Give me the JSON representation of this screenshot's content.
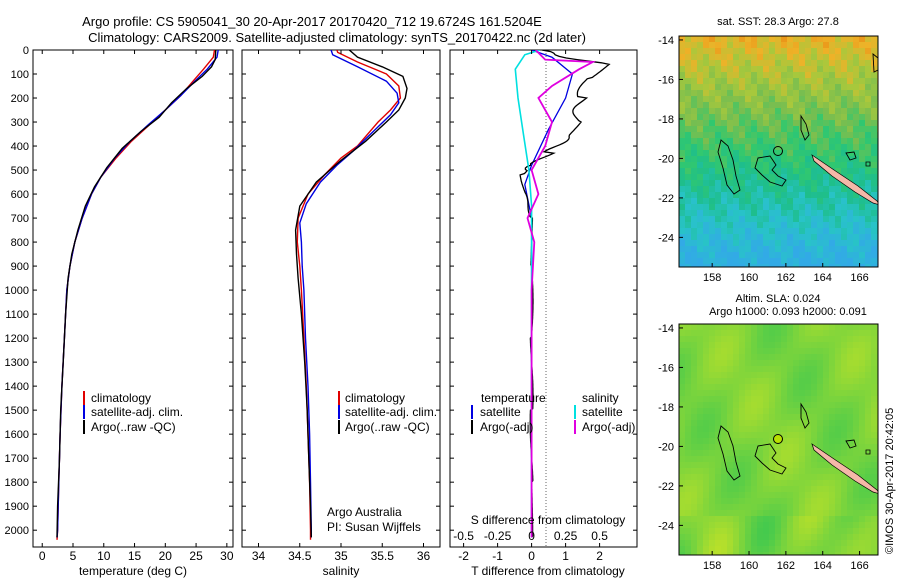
{
  "title_line1": "Argo profile: CS 5905041_30 20-Apr-2017 20170420_712 19.6724S 161.5204E",
  "title_line2": "Climatology: CARS2009. Satellite-adjusted climatology: synTS_20170422.nc (2d later)",
  "footer": "©IMOS 30-Apr-2017 20:42:05",
  "colors": {
    "climatology": "#e00000",
    "satellite": "#0000e0",
    "argo": "#000000",
    "s_satellite": "#00e0e0",
    "s_argo": "#e000e0",
    "land": "#f4b8a8"
  },
  "chart_data": [
    {
      "type": "line",
      "id": "temperature",
      "xlabel": "temperature (deg C)",
      "ylabel": "",
      "xlim": [
        -1.5,
        31
      ],
      "ylim": [
        2070,
        0
      ],
      "xticks": [
        "0",
        "5",
        "10",
        "15",
        "20",
        "25",
        "30"
      ],
      "xtick_values": [
        0,
        5,
        10,
        15,
        20,
        25,
        30
      ],
      "yticks": [
        "0",
        "100",
        "200",
        "300",
        "400",
        "500",
        "600",
        "700",
        "800",
        "900",
        "1000",
        "1100",
        "1200",
        "1300",
        "1400",
        "1500",
        "1600",
        "1700",
        "1800",
        "1900",
        "2000"
      ],
      "ytick_values": [
        0,
        100,
        200,
        300,
        400,
        500,
        600,
        700,
        800,
        900,
        1000,
        1100,
        1200,
        1300,
        1400,
        1500,
        1600,
        1700,
        1800,
        1900,
        2000
      ],
      "legend": [
        "climatology",
        "satellite-adj. clim.",
        "Argo(..raw -QC)"
      ],
      "series": [
        {
          "name": "climatology",
          "points": [
            [
              28,
              0
            ],
            [
              27.8,
              30
            ],
            [
              26.2,
              80
            ],
            [
              24.5,
              130
            ],
            [
              22.5,
              190
            ],
            [
              20,
              250
            ],
            [
              17.5,
              310
            ],
            [
              14.5,
              380
            ],
            [
              12,
              450
            ],
            [
              9.5,
              530
            ],
            [
              8,
              600
            ],
            [
              6.5,
              700
            ],
            [
              5.3,
              800
            ],
            [
              4.5,
              900
            ],
            [
              4,
              1000
            ],
            [
              3.6,
              1200
            ],
            [
              3.2,
              1400
            ],
            [
              2.9,
              1600
            ],
            [
              2.7,
              1800
            ],
            [
              2.5,
              2000
            ],
            [
              2.4,
              2040
            ]
          ]
        },
        {
          "name": "satellite-adj. clim.",
          "points": [
            [
              28.6,
              0
            ],
            [
              28.4,
              30
            ],
            [
              26.8,
              80
            ],
            [
              24.8,
              130
            ],
            [
              22.5,
              190
            ],
            [
              20,
              250
            ],
            [
              17.3,
              310
            ],
            [
              14.3,
              380
            ],
            [
              11.8,
              450
            ],
            [
              9.5,
              530
            ],
            [
              8,
              600
            ],
            [
              6.5,
              700
            ],
            [
              5.3,
              800
            ],
            [
              4.5,
              900
            ],
            [
              4,
              1000
            ],
            [
              3.6,
              1200
            ],
            [
              3.2,
              1400
            ],
            [
              2.9,
              1600
            ],
            [
              2.7,
              1800
            ],
            [
              2.5,
              2000
            ],
            [
              2.4,
              2030
            ]
          ]
        },
        {
          "name": "Argo(..raw -QC)",
          "points": [
            [
              28.2,
              0
            ],
            [
              28.1,
              40
            ],
            [
              27.5,
              70
            ],
            [
              26,
              110
            ],
            [
              23.5,
              160
            ],
            [
              21,
              220
            ],
            [
              19,
              280
            ],
            [
              16,
              340
            ],
            [
              13,
              410
            ],
            [
              10.5,
              490
            ],
            [
              8.5,
              570
            ],
            [
              7,
              650
            ],
            [
              5.8,
              750
            ],
            [
              4.8,
              850
            ],
            [
              4.2,
              950
            ],
            [
              3.8,
              1100
            ],
            [
              3.4,
              1300
            ],
            [
              3,
              1500
            ],
            [
              2.8,
              1700
            ],
            [
              2.5,
              1900
            ],
            [
              2.4,
              2030
            ]
          ]
        }
      ]
    },
    {
      "type": "line",
      "id": "salinity",
      "xlabel": "salinity",
      "ylabel": "",
      "xlim": [
        33.8,
        36.2
      ],
      "ylim": [
        2070,
        0
      ],
      "xticks": [
        "34",
        "34.5",
        "35",
        "35.5",
        "36"
      ],
      "xtick_values": [
        34,
        34.5,
        35,
        35.5,
        36
      ],
      "legend": [
        "climatology",
        "satellite-adj. clim.",
        "Argo(..raw -QC)"
      ],
      "annotation": [
        "Argo Australia",
        "PI: Susan Wijffels"
      ],
      "series": [
        {
          "name": "climatology",
          "points": [
            [
              34.95,
              0
            ],
            [
              34.96,
              10
            ],
            [
              35.2,
              50
            ],
            [
              35.55,
              100
            ],
            [
              35.7,
              150
            ],
            [
              35.72,
              200
            ],
            [
              35.6,
              250
            ],
            [
              35.45,
              300
            ],
            [
              35.2,
              400
            ],
            [
              35,
              450
            ],
            [
              34.8,
              520
            ],
            [
              34.6,
              600
            ],
            [
              34.48,
              700
            ],
            [
              34.47,
              800
            ],
            [
              34.5,
              900
            ],
            [
              34.52,
              1000
            ],
            [
              34.55,
              1200
            ],
            [
              34.58,
              1400
            ],
            [
              34.6,
              1600
            ],
            [
              34.62,
              1800
            ],
            [
              34.63,
              2000
            ],
            [
              34.63,
              2040
            ]
          ]
        },
        {
          "name": "satellite-adj. clim.",
          "points": [
            [
              34.88,
              0
            ],
            [
              34.9,
              20
            ],
            [
              35.2,
              70
            ],
            [
              35.55,
              130
            ],
            [
              35.68,
              180
            ],
            [
              35.7,
              220
            ],
            [
              35.6,
              270
            ],
            [
              35.45,
              320
            ],
            [
              35.15,
              420
            ],
            [
              34.95,
              480
            ],
            [
              34.75,
              550
            ],
            [
              34.58,
              640
            ],
            [
              34.5,
              720
            ],
            [
              34.52,
              800
            ],
            [
              34.53,
              900
            ],
            [
              34.55,
              1000
            ],
            [
              34.57,
              1200
            ],
            [
              34.6,
              1400
            ],
            [
              34.62,
              1600
            ],
            [
              34.63,
              1800
            ],
            [
              34.64,
              2000
            ],
            [
              34.64,
              2030
            ]
          ]
        },
        {
          "name": "Argo(..raw -QC)",
          "points": [
            [
              35.1,
              0
            ],
            [
              35.2,
              30
            ],
            [
              35.5,
              70
            ],
            [
              35.75,
              110
            ],
            [
              35.8,
              160
            ],
            [
              35.78,
              200
            ],
            [
              35.7,
              250
            ],
            [
              35.55,
              300
            ],
            [
              35.3,
              380
            ],
            [
              35,
              460
            ],
            [
              34.7,
              550
            ],
            [
              34.5,
              650
            ],
            [
              34.45,
              750
            ],
            [
              34.46,
              850
            ],
            [
              34.48,
              950
            ],
            [
              34.52,
              1100
            ],
            [
              34.56,
              1300
            ],
            [
              34.59,
              1500
            ],
            [
              34.61,
              1700
            ],
            [
              34.63,
              1900
            ],
            [
              34.64,
              2030
            ]
          ]
        }
      ]
    },
    {
      "type": "line",
      "id": "differences",
      "xlabel": "T difference from climatology",
      "xlabel_top": "S difference from climatology",
      "xlim": [
        -2.4,
        3.1
      ],
      "ylim": [
        2070,
        0
      ],
      "xticks": [
        "-2",
        "-1",
        "0",
        "1",
        "2"
      ],
      "xtick_values": [
        -2,
        -1,
        0,
        1,
        2
      ],
      "s_xticks": [
        "-0.5",
        "-0.25",
        "0",
        "0.25",
        "0.5"
      ],
      "s_xtick_values": [
        -0.5,
        -0.25,
        0,
        0.25,
        0.5
      ],
      "legend_t_title": "temperature",
      "legend_s_title": "salinity",
      "legend": [
        "satellite",
        "Argo(-adj)",
        "satellite",
        "Argo(-adj)"
      ],
      "series": [
        {
          "name": "T satellite",
          "points": [
            [
              0,
              0
            ],
            [
              0.6,
              30
            ],
            [
              1.2,
              100
            ],
            [
              1,
              200
            ],
            [
              0.5,
              330
            ],
            [
              0,
              480
            ],
            [
              -0.2,
              560
            ],
            [
              0,
              700
            ],
            [
              0,
              900
            ],
            [
              0,
              1200
            ],
            [
              0,
              1500
            ],
            [
              0,
              1800
            ],
            [
              0,
              2030
            ]
          ]
        },
        {
          "name": "T Argo(-adj)",
          "points": [
            [
              0.3,
              0
            ],
            [
              0.6,
              20
            ],
            [
              1.5,
              40
            ],
            [
              2.1,
              60
            ],
            [
              1.6,
              120
            ],
            [
              1.5,
              200
            ],
            [
              1.3,
              300
            ],
            [
              1,
              360
            ],
            [
              0.5,
              430
            ],
            [
              0.1,
              480
            ],
            [
              -0.3,
              520
            ],
            [
              -0.2,
              600
            ],
            [
              0,
              700
            ],
            [
              0,
              900
            ],
            [
              0,
              1200
            ],
            [
              0,
              1500
            ],
            [
              0,
              1800
            ],
            [
              0,
              2030
            ]
          ]
        },
        {
          "name": "S satellite",
          "points": [
            [
              0.06,
              0
            ],
            [
              -0.05,
              20
            ],
            [
              -0.12,
              80
            ],
            [
              -0.1,
              200
            ],
            [
              -0.06,
              350
            ],
            [
              -0.02,
              500
            ],
            [
              0,
              650
            ],
            [
              0,
              900
            ],
            [
              0,
              1200
            ],
            [
              0,
              1500
            ],
            [
              0,
              1800
            ],
            [
              0,
              2030
            ]
          ]
        },
        {
          "name": "S Argo(-adj)",
          "points": [
            [
              0.03,
              0
            ],
            [
              0.1,
              40
            ],
            [
              0.45,
              50
            ],
            [
              0.35,
              80
            ],
            [
              0.15,
              150
            ],
            [
              0.05,
              200
            ],
            [
              0.15,
              300
            ],
            [
              0.1,
              400
            ],
            [
              0,
              500
            ],
            [
              0.05,
              600
            ],
            [
              -0.03,
              700
            ],
            [
              0.02,
              800
            ],
            [
              0,
              1000
            ],
            [
              0,
              1300
            ],
            [
              0,
              1600
            ],
            [
              0,
              2030
            ]
          ]
        }
      ]
    },
    {
      "type": "heatmap",
      "id": "sst_map",
      "title": "sat. SST: 28.3  Argo: 27.8",
      "xlim": [
        156.2,
        167
      ],
      "ylim": [
        -25.5,
        -13.8
      ],
      "xticks": [
        "158",
        "160",
        "162",
        "164",
        "166"
      ],
      "xtick_values": [
        158,
        160,
        162,
        164,
        166
      ],
      "yticks": [
        "-14",
        "-16",
        "-18",
        "-20",
        "-22",
        "-24"
      ],
      "ytick_values": [
        -14,
        -16,
        -18,
        -20,
        -22,
        -24
      ],
      "argo_position": [
        161.52,
        -19.67
      ]
    },
    {
      "type": "heatmap",
      "id": "sla_map",
      "title": "Altim. SLA: 0.024",
      "subtitle": "Argo h1000: 0.093  h2000: 0.091",
      "xlim": [
        156.2,
        167
      ],
      "ylim": [
        -25.5,
        -13.8
      ],
      "xticks": [
        "158",
        "160",
        "162",
        "164",
        "166"
      ],
      "xtick_values": [
        158,
        160,
        162,
        164,
        166
      ],
      "yticks": [
        "-14",
        "-16",
        "-18",
        "-20",
        "-22",
        "-24"
      ],
      "ytick_values": [
        -14,
        -16,
        -18,
        -20,
        -22,
        -24
      ],
      "argo_position": [
        161.52,
        -19.67
      ]
    }
  ]
}
